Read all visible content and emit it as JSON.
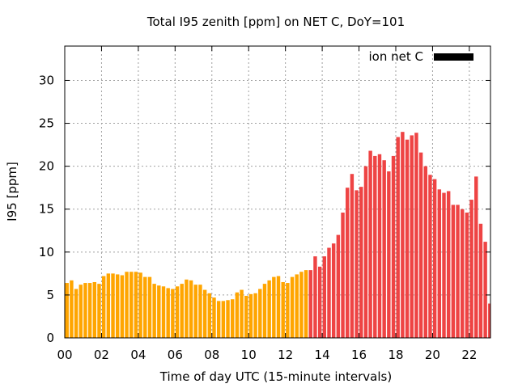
{
  "chart_data": {
    "type": "bar",
    "title": "Total I95 zenith [ppm] on NET C, DoY=101",
    "xlabel": "Time of day UTC (15-minute intervals)",
    "ylabel": "I95 [ppm]",
    "xlim": [
      0,
      23.15
    ],
    "ylim": [
      0,
      34
    ],
    "grid": true,
    "x_ticks": [
      0,
      2,
      4,
      6,
      8,
      10,
      12,
      14,
      16,
      18,
      20,
      22
    ],
    "x_tick_labels": [
      "00",
      "02",
      "04",
      "06",
      "08",
      "10",
      "12",
      "14",
      "16",
      "18",
      "20",
      "22"
    ],
    "y_ticks": [
      0,
      5,
      10,
      15,
      20,
      25,
      30
    ],
    "y_tick_labels": [
      "0",
      "5",
      "10",
      "15",
      "20",
      "25",
      "30"
    ],
    "legend": {
      "label": "ion net C",
      "placement": "top-right",
      "color": "#000000"
    },
    "interval_hours": 0.25,
    "colors": {
      "early": "#FFA500",
      "late": "#EE4444"
    },
    "color_switch_index": 53,
    "values": [
      6.4,
      6.7,
      5.7,
      6.2,
      6.4,
      6.4,
      6.5,
      6.3,
      7.2,
      7.5,
      7.5,
      7.4,
      7.3,
      7.7,
      7.7,
      7.7,
      7.6,
      7.1,
      7.1,
      6.3,
      6.1,
      6.0,
      5.8,
      5.7,
      6.0,
      6.3,
      6.8,
      6.7,
      6.2,
      6.2,
      5.6,
      5.2,
      4.7,
      4.3,
      4.3,
      4.4,
      4.5,
      5.3,
      5.6,
      4.9,
      5.1,
      5.2,
      5.7,
      6.3,
      6.7,
      7.1,
      7.2,
      6.5,
      6.4,
      7.1,
      7.4,
      7.7,
      7.9,
      7.9,
      9.5,
      8.3,
      9.5,
      10.5,
      11.0,
      12.0,
      14.6,
      17.5,
      19.1,
      17.2,
      17.6,
      20.0,
      21.8,
      21.2,
      21.4,
      20.7,
      19.4,
      21.2,
      23.4,
      24.0,
      23.1,
      23.6,
      23.9,
      21.6,
      20.0,
      19.0,
      18.5,
      17.3,
      16.9,
      17.1,
      15.5,
      15.5,
      15.0,
      14.6,
      16.1,
      18.8,
      13.3,
      11.2,
      4.0
    ]
  }
}
